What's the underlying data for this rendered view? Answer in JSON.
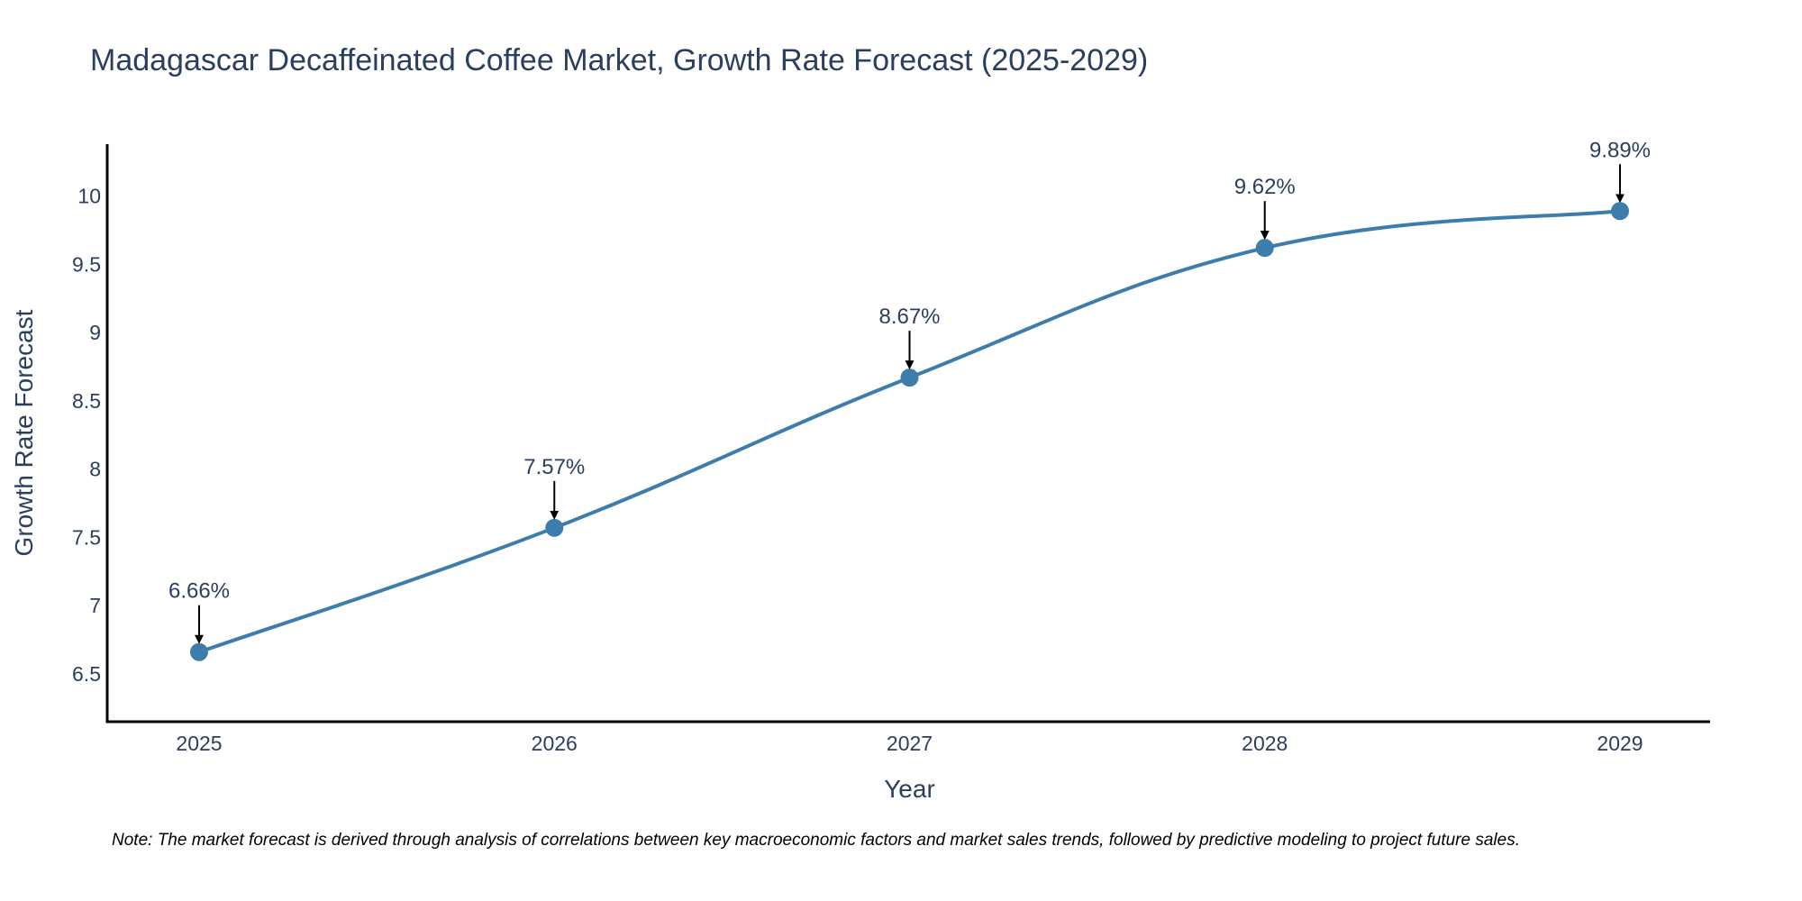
{
  "chart_data": {
    "type": "line",
    "title": "Madagascar Decaffeinated Coffee Market, Growth Rate Forecast (2025-2029)",
    "xlabel": "Year",
    "ylabel": "Growth Rate Forecast",
    "categories": [
      "2025",
      "2026",
      "2027",
      "2028",
      "2029"
    ],
    "values": [
      6.66,
      7.57,
      8.67,
      9.62,
      9.89
    ],
    "data_labels": [
      "6.66%",
      "7.57%",
      "8.67%",
      "9.62%",
      "9.89%"
    ],
    "yticks": [
      6.5,
      7,
      7.5,
      8,
      8.5,
      9,
      9.5,
      10
    ],
    "ytick_labels": [
      "6.5",
      "7",
      "7.5",
      "8",
      "8.5",
      "9",
      "9.5",
      "10"
    ],
    "ylim": [
      6.15,
      10.38
    ],
    "line_color": "#3d7dab",
    "grid": false,
    "note": "Note: The market forecast is derived through analysis of correlations between key macroeconomic factors and market sales trends, followed by predictive modeling to project future sales."
  }
}
